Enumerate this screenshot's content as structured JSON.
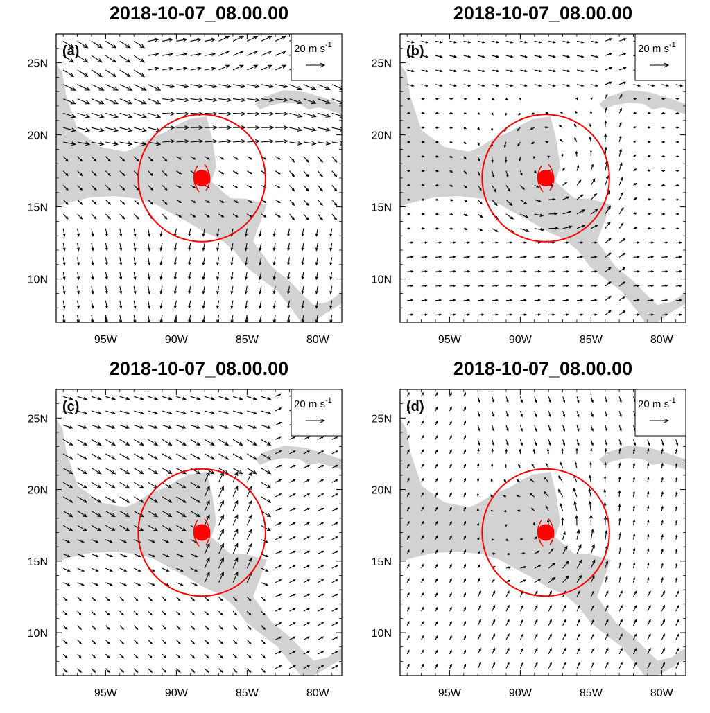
{
  "panels": [
    {
      "id": "a",
      "label": "(a)",
      "title": "2018-10-07_08.00.00",
      "pattern": "a"
    },
    {
      "id": "b",
      "label": "(b)",
      "title": "2018-10-07_08.00.00",
      "pattern": "b"
    },
    {
      "id": "c",
      "label": "(c)",
      "title": "2018-10-07_08.00.00",
      "pattern": "c"
    },
    {
      "id": "d",
      "label": "(d)",
      "title": "2018-10-07_08.00.00",
      "pattern": "d"
    }
  ],
  "reference_vector": {
    "value": "20 m s",
    "superscript": "-1",
    "speed_ms": 20
  },
  "axes": {
    "lon_range": [
      -98.5,
      -78.3
    ],
    "lat_range": [
      7.0,
      27.0
    ],
    "lon_ticks": [
      -95,
      -90,
      -85,
      -80
    ],
    "lon_labels": [
      "95W",
      "90W",
      "85W",
      "80W"
    ],
    "lat_ticks": [
      10,
      15,
      20,
      25
    ],
    "lat_labels": [
      "10N",
      "15N",
      "20N",
      "25N"
    ]
  },
  "storm": {
    "lon": -88.2,
    "lat": 17.0,
    "circle_radius_deg": 4.5
  },
  "colors": {
    "land": "#d2d2d2",
    "storm": "#ff0000",
    "arrow": "#000000"
  }
}
